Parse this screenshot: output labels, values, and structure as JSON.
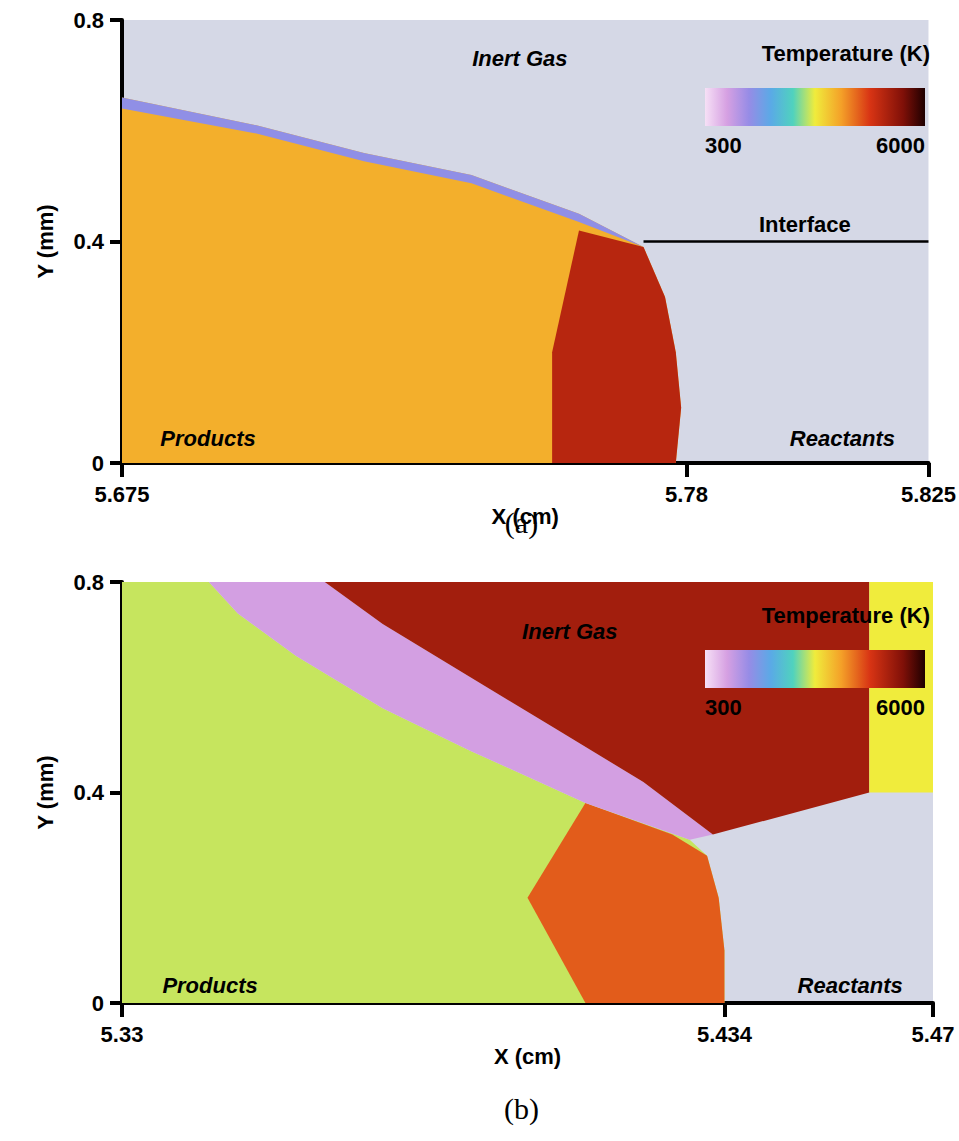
{
  "chart_data": [
    {
      "panel": "(a)",
      "type": "field",
      "x_label": "X (cm)",
      "y_label": "Y (mm)",
      "xlim": [
        5.675,
        5.825
      ],
      "xticks": [
        5.675,
        5.78,
        5.825
      ],
      "ylim": [
        0,
        0.8
      ],
      "yticks": [
        0,
        0.4,
        0.8
      ],
      "colorbar": {
        "label": "Temperature (K)",
        "range": [
          300,
          6000
        ],
        "ticks": [
          300,
          6000
        ]
      },
      "regions": [
        {
          "temperature": 3700,
          "points": [
            [
              5.675,
              0
            ],
            [
              5.778,
              0
            ],
            [
              5.779,
              0.1
            ],
            [
              5.778,
              0.2
            ],
            [
              5.776,
              0.3
            ],
            [
              5.772,
              0.39
            ],
            [
              5.76,
              0.45
            ],
            [
              5.74,
              0.52
            ],
            [
              5.72,
              0.56
            ],
            [
              5.7,
              0.61
            ],
            [
              5.675,
              0.66
            ]
          ]
        },
        {
          "temperature": 4900,
          "points": [
            [
              5.755,
              0
            ],
            [
              5.778,
              0
            ],
            [
              5.779,
              0.1
            ],
            [
              5.778,
              0.2
            ],
            [
              5.776,
              0.3
            ],
            [
              5.772,
              0.39
            ],
            [
              5.76,
              0.42
            ],
            [
              5.755,
              0.2
            ]
          ]
        },
        {
          "temperature": 1500,
          "points": [
            [
              5.772,
              0.39
            ],
            [
              5.76,
              0.45
            ],
            [
              5.74,
              0.52
            ],
            [
              5.72,
              0.56
            ],
            [
              5.7,
              0.61
            ],
            [
              5.675,
              0.66
            ],
            [
              5.675,
              0.64
            ],
            [
              5.7,
              0.595
            ],
            [
              5.72,
              0.545
            ],
            [
              5.74,
              0.505
            ],
            [
              5.76,
              0.435
            ]
          ]
        }
      ],
      "lines": [
        {
          "label": "Interface",
          "x": [
            5.772,
            5.825
          ],
          "y": [
            0.4,
            0.4
          ],
          "label_x": 5.802,
          "label_y": 0.43
        }
      ],
      "annotations": [
        {
          "text": "Inert Gas",
          "x": 5.749,
          "y": 0.73
        },
        {
          "text": "Products",
          "x": 5.691,
          "y": 0.045
        },
        {
          "text": "Reactants",
          "x": 5.809,
          "y": 0.045
        }
      ]
    },
    {
      "panel": "(b)",
      "type": "field",
      "x_label": "X (cm)",
      "y_label": "Y (mm)",
      "xlim": [
        5.33,
        5.47
      ],
      "xticks": [
        5.33,
        5.434,
        5.47
      ],
      "ylim": [
        0,
        0.8
      ],
      "yticks": [
        0,
        0.4,
        0.8
      ],
      "colorbar": {
        "label": "Temperature (K)",
        "range": [
          300,
          6000
        ],
        "ticks": [
          300,
          6000
        ]
      },
      "regions": [
        {
          "temperature": 3000,
          "points": [
            [
              5.33,
              0
            ],
            [
              5.434,
              0
            ],
            [
              5.434,
              0.1
            ],
            [
              5.433,
              0.2
            ],
            [
              5.431,
              0.28
            ],
            [
              5.428,
              0.31
            ],
            [
              5.41,
              0.38
            ],
            [
              5.39,
              0.48
            ],
            [
              5.375,
              0.56
            ],
            [
              5.36,
              0.66
            ],
            [
              5.35,
              0.74
            ],
            [
              5.345,
              0.8
            ],
            [
              5.33,
              0.8
            ]
          ]
        },
        {
          "temperature": 4300,
          "points": [
            [
              5.41,
              0
            ],
            [
              5.434,
              0
            ],
            [
              5.434,
              0.1
            ],
            [
              5.433,
              0.2
            ],
            [
              5.431,
              0.28
            ],
            [
              5.425,
              0.32
            ],
            [
              5.41,
              0.38
            ],
            [
              5.4,
              0.2
            ]
          ]
        },
        {
          "temperature": 900,
          "points": [
            [
              5.428,
              0.31
            ],
            [
              5.41,
              0.38
            ],
            [
              5.39,
              0.48
            ],
            [
              5.375,
              0.56
            ],
            [
              5.36,
              0.66
            ],
            [
              5.35,
              0.74
            ],
            [
              5.345,
              0.8
            ],
            [
              5.365,
              0.8
            ],
            [
              5.375,
              0.72
            ],
            [
              5.39,
              0.62
            ],
            [
              5.405,
              0.52
            ],
            [
              5.42,
              0.42
            ],
            [
              5.432,
              0.32
            ]
          ]
        },
        {
          "temperature": 5100,
          "points": [
            [
              5.365,
              0.8
            ],
            [
              5.459,
              0.8
            ],
            [
              5.459,
              0.4
            ],
            [
              5.432,
              0.32
            ],
            [
              5.42,
              0.42
            ],
            [
              5.405,
              0.52
            ],
            [
              5.39,
              0.62
            ],
            [
              5.375,
              0.72
            ]
          ]
        },
        {
          "temperature": 3150,
          "points": [
            [
              5.459,
              0.4
            ],
            [
              5.47,
              0.4
            ],
            [
              5.47,
              0.8
            ],
            [
              5.459,
              0.8
            ]
          ]
        }
      ],
      "annotations": [
        {
          "text": "Inert Gas",
          "x": 5.4073,
          "y": 0.705
        },
        {
          "text": "Products",
          "x": 5.3452,
          "y": 0.034
        },
        {
          "text": "Reactants",
          "x": 5.4557,
          "y": 0.034
        }
      ]
    }
  ]
}
